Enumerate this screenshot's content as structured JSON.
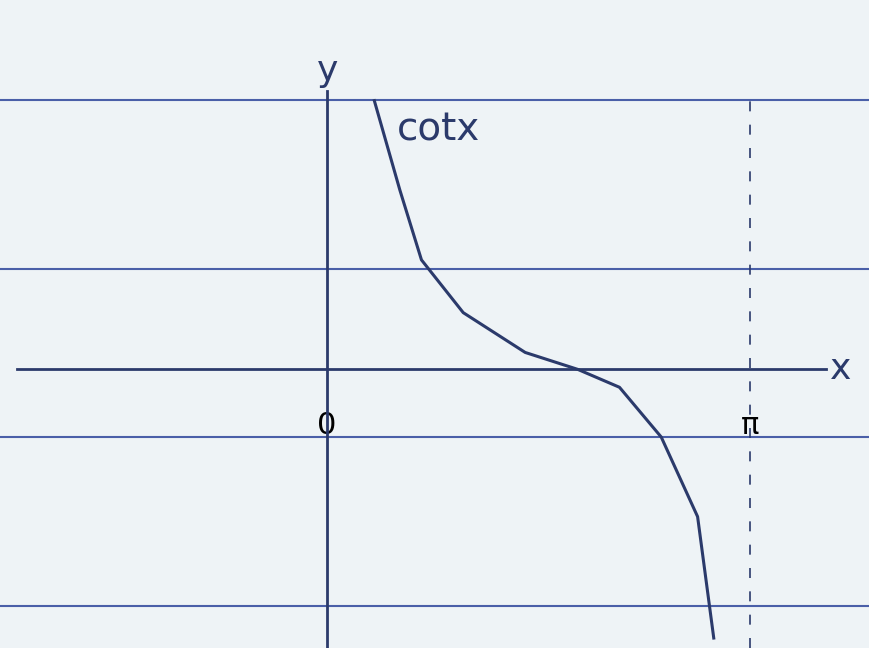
{
  "chart_data": {
    "type": "line",
    "x_label": "x",
    "y_label": "y",
    "annotations": [
      "cotx"
    ],
    "x": [
      0.35,
      0.54,
      0.7,
      1.01,
      1.47,
      1.86,
      2.17,
      2.48,
      2.75,
      2.87
    ],
    "values": [
      2.7,
      1.8,
      1.1,
      0.57,
      0.17,
      0.0,
      -0.18,
      -0.68,
      -1.48,
      -2.7
    ],
    "color": "#2b3a6b",
    "xlim": [
      -2.3,
      3.7
    ],
    "ylim": [
      -2.8,
      2.8
    ],
    "xticks": [
      0,
      {
        "value": 3.14159,
        "label": "π"
      }
    ],
    "yticks": [],
    "tick_labels": "x",
    "grid": false
  }
}
